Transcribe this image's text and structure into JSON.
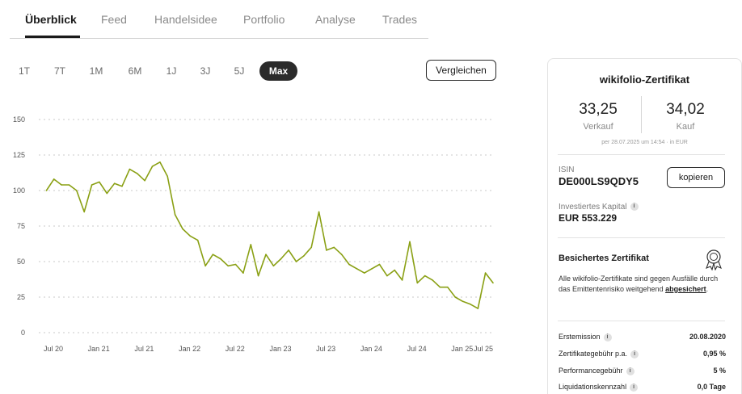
{
  "tabs": [
    {
      "label": "Überblick",
      "active": true
    },
    {
      "label": "Feed"
    },
    {
      "label": "Handelsidee"
    },
    {
      "label": "Portfolio"
    },
    {
      "label": "Analyse"
    },
    {
      "label": "Trades"
    }
  ],
  "ranges": [
    "1T",
    "7T",
    "1M",
    "6M",
    "1J",
    "3J",
    "5J",
    "Max"
  ],
  "active_range": "Max",
  "compare_label": "Vergleichen",
  "chart_data": {
    "type": "line",
    "title": "",
    "xlabel": "",
    "ylabel": "",
    "line_color": "#8aa014",
    "grid": "dotted horizontal",
    "ylim": [
      0,
      150
    ],
    "yticks": [
      "0",
      "25",
      "50",
      "75",
      "100",
      "125",
      "150"
    ],
    "xticks": [
      "Jul 20",
      "Jan 21",
      "Jul 21",
      "Jan 22",
      "Jul 22",
      "Jan 23",
      "Jul 23",
      "Jan 24",
      "Jul 24",
      "Jan 25",
      "Jul 25"
    ],
    "series": [
      {
        "x": [
          "2020-08",
          "2020-09",
          "2020-10",
          "2020-11",
          "2020-12",
          "2021-01",
          "2021-02",
          "2021-03",
          "2021-04",
          "2021-05",
          "2021-06",
          "2021-07",
          "2021-08",
          "2021-09",
          "2021-10",
          "2021-11",
          "2021-12",
          "2022-01",
          "2022-02",
          "2022-03",
          "2022-04",
          "2022-05",
          "2022-06",
          "2022-07",
          "2022-08",
          "2022-09",
          "2022-10",
          "2022-11",
          "2022-12",
          "2023-01",
          "2023-02",
          "2023-03",
          "2023-04",
          "2023-05",
          "2023-06",
          "2023-07",
          "2023-08",
          "2023-09",
          "2023-10",
          "2023-11",
          "2023-12",
          "2024-01",
          "2024-02",
          "2024-03",
          "2024-04",
          "2024-05",
          "2024-06",
          "2024-07",
          "2024-08",
          "2024-09",
          "2024-10",
          "2024-11",
          "2024-12",
          "2025-01",
          "2025-02",
          "2025-03",
          "2025-04",
          "2025-05",
          "2025-06",
          "2025-07"
        ],
        "values": [
          100,
          108,
          104,
          104,
          100,
          85,
          104,
          106,
          98,
          105,
          103,
          115,
          112,
          107,
          117,
          120,
          110,
          83,
          73,
          68,
          65,
          47,
          55,
          52,
          47,
          48,
          42,
          62,
          40,
          55,
          47,
          52,
          58,
          50,
          54,
          60,
          85,
          58,
          60,
          55,
          48,
          45,
          42,
          45,
          48,
          40,
          44,
          37,
          64,
          35,
          40,
          37,
          32,
          32,
          25,
          22,
          20,
          17,
          42,
          35
        ]
      }
    ]
  },
  "card": {
    "title": "wikifolio-Zertifikat",
    "sell_value": "33,25",
    "sell_label": "Verkauf",
    "buy_value": "34,02",
    "buy_label": "Kauf",
    "price_meta": "per 28.07.2025 um 14:54 · in EUR",
    "isin_label": "ISIN",
    "isin_value": "DE000LS9QDY5",
    "copy_label": "kopieren",
    "capital_label": "Investiertes Kapital",
    "capital_value": "EUR 553.229",
    "secured_title": "Besichertes Zertifikat",
    "secured_text": "Alle wikifolio-Zertifikate sind gegen Ausfälle durch das Emittentenrisiko weitgehend",
    "secured_link": "abgesichert",
    "secured_suffix": ".",
    "rows": [
      {
        "label": "Erstemission",
        "value": "20.08.2020"
      },
      {
        "label": "Zertifikategebühr p.a.",
        "value": "0,95 %"
      },
      {
        "label": "Performancegebühr",
        "value": "5 %"
      },
      {
        "label": "Liquidationskennzahl",
        "value": "0,0 Tage"
      }
    ]
  }
}
